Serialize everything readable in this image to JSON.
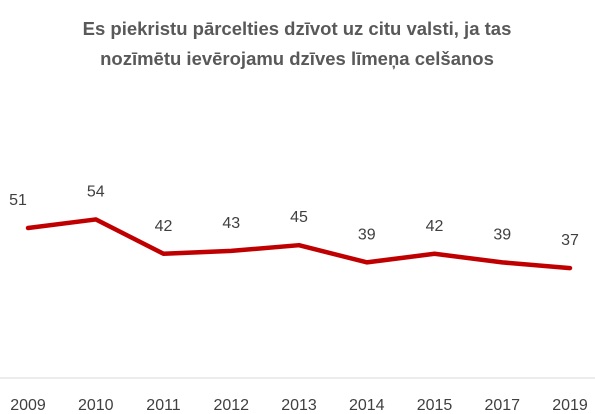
{
  "chart_data": {
    "type": "line",
    "title": "Es piekristu pārcelties dzīvot uz citu valsti, ja tas nozīmētu ievērojamu dzīves līmeņa celšanos",
    "categories": [
      "2009",
      "2010",
      "2011",
      "2012",
      "2013",
      "2014",
      "2015",
      "2017",
      "2019"
    ],
    "values": [
      51,
      54,
      42,
      43,
      45,
      39,
      42,
      39,
      37
    ],
    "color": "#c00000",
    "ylim": [
      0,
      80
    ]
  }
}
